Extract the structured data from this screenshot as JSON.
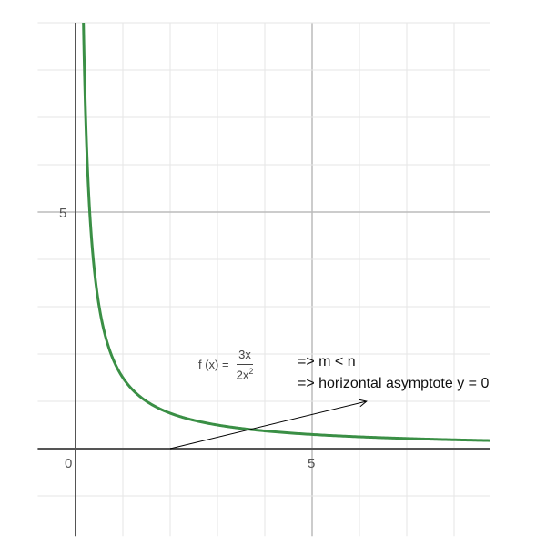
{
  "chart_data": {
    "type": "line",
    "function": "f(x) = 3x / (2x^2)",
    "series": [
      {
        "expression": "1.5/x",
        "color": "#3a8f45"
      }
    ],
    "xlim": [
      -0.8,
      8.75
    ],
    "ylim": [
      -1.85,
      9
    ],
    "grid": true,
    "grid_step": 1,
    "x_ticks": [
      {
        "value": 0,
        "label": "0"
      },
      {
        "value": 5,
        "label": "5"
      }
    ],
    "y_ticks": [
      {
        "value": 5,
        "label": "5"
      }
    ],
    "annotation": {
      "formula_lhs": "f (x) =",
      "numerator": "3x",
      "denominator_base": "2x",
      "denominator_exp": "2",
      "lines": [
        "=> m < n",
        "=> horizontal asymptote y = 0"
      ],
      "arrow_from": [
        2,
        0
      ],
      "arrow_to": [
        6.15,
        1
      ]
    }
  }
}
